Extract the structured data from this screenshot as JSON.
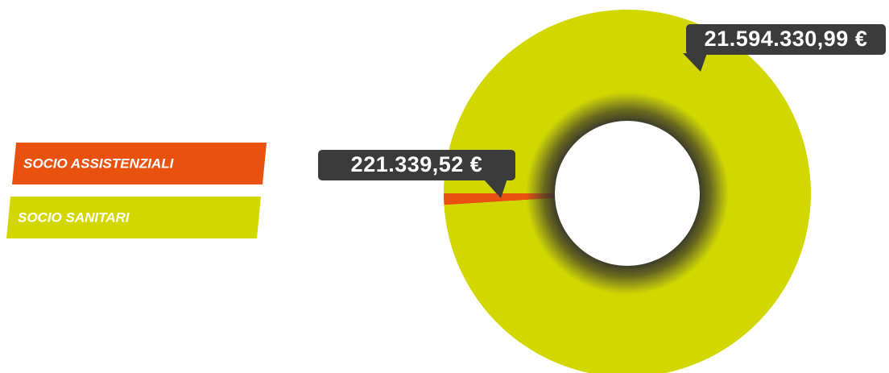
{
  "chart_data": {
    "type": "donut",
    "categories": [
      "SOCIO ASSISTENZIALI",
      "SOCIO SANITARI"
    ],
    "values": [
      221339.52,
      21594330.99
    ],
    "value_labels": [
      "221.339,52 €",
      "21.594.330,99 €"
    ],
    "colors": [
      "#e8520e",
      "#d2d700"
    ],
    "legend": "left"
  }
}
